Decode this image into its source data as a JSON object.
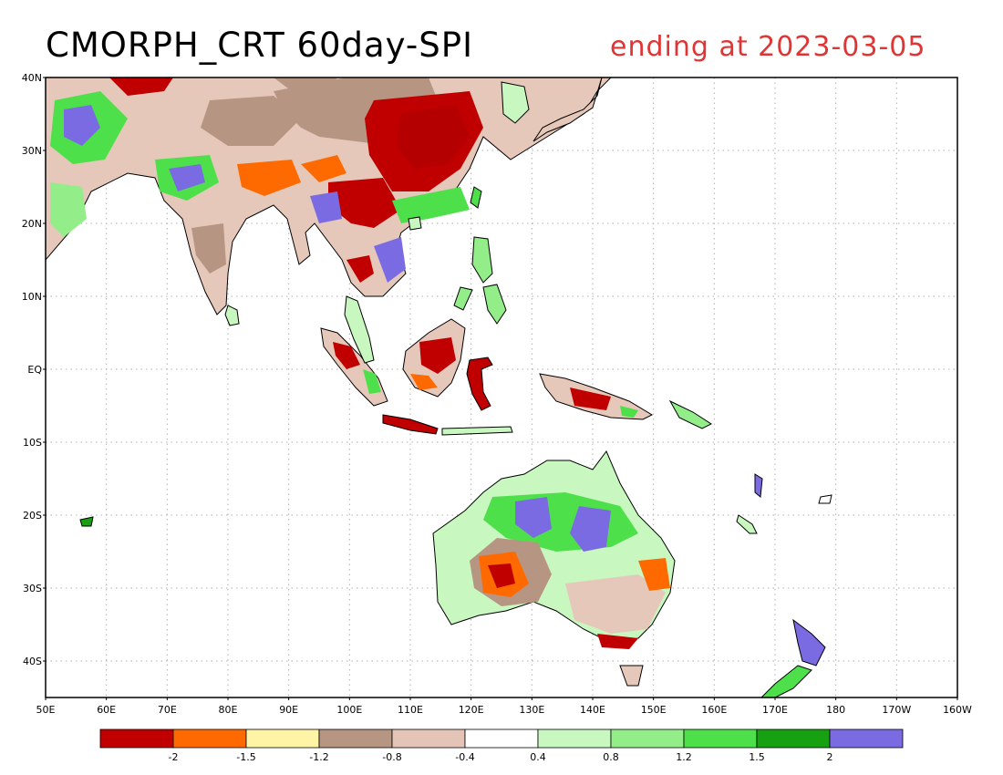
{
  "title": "CMORPH_CRT 60day-SPI",
  "subtitle": "ending at 2023-03-05",
  "colors": {
    "title": "#000000",
    "subtitle": "#e03535",
    "frame": "#000000",
    "grid": "#b0b0b0"
  },
  "axes": {
    "lat_labels": [
      "40N",
      "30N",
      "20N",
      "10N",
      "EQ",
      "10S",
      "20S",
      "30S",
      "40S"
    ],
    "lon_labels": [
      "50E",
      "60E",
      "70E",
      "80E",
      "90E",
      "100E",
      "110E",
      "120E",
      "130E",
      "140E",
      "150E",
      "160E",
      "170E",
      "180",
      "170W",
      "160W"
    ]
  },
  "legend": {
    "colors": [
      "#c00000",
      "#ff6a00",
      "#fff3a6",
      "#b79583",
      "#e4c4b6",
      "#ffffff",
      "#c8f7c0",
      "#93ee8a",
      "#4ee04a",
      "#16a012",
      "#7b6be3"
    ],
    "labels": [
      "-2",
      "-1.5",
      "-1.2",
      "-0.8",
      "-0.4",
      "0.4",
      "0.8",
      "1.2",
      "1.5",
      "2"
    ]
  }
}
